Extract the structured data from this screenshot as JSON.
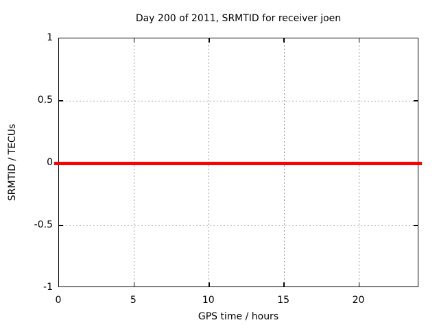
{
  "chart_data": {
    "type": "line",
    "title": "Day 200 of 2011, SRMTID for receiver joen",
    "xlabel": "GPS time / hours",
    "ylabel": "SRMTID / TECUs",
    "xlim": [
      0,
      24
    ],
    "ylim": [
      -1,
      1
    ],
    "xticks": [
      0,
      5,
      10,
      15,
      20
    ],
    "yticks": [
      1,
      0.5,
      0,
      -0.5,
      -1
    ],
    "grid": true,
    "legend": "none",
    "series": [
      {
        "name": "SRMTID",
        "color": "#ff0000",
        "style": "thick-line",
        "x": [
          0,
          24
        ],
        "y": [
          0,
          0
        ]
      }
    ],
    "colors": {
      "background": "#ffffff",
      "border": "#000000",
      "grid": "#999999",
      "text": "#000000"
    }
  }
}
